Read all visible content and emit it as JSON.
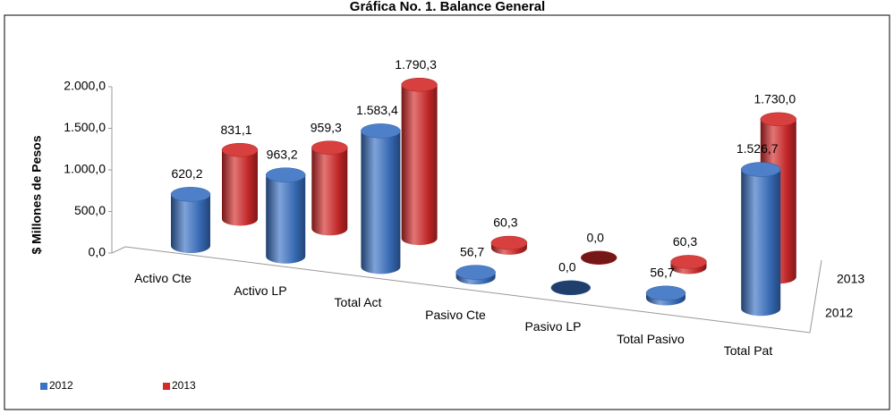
{
  "chart_data": {
    "type": "bar3d",
    "title": "Gráfica No. 1. Balance General",
    "y_label": "$ Millones de Pesos",
    "categories": [
      "Activo Cte",
      "Activo LP",
      "Total Act",
      "Pasivo Cte",
      "Pasivo LP",
      "Total Pasivo",
      "Total Pat"
    ],
    "series": [
      {
        "name": "2012",
        "color": "#3a72c4",
        "values": [
          620.2,
          963.2,
          1583.4,
          56.7,
          0.0,
          56.7,
          1526.7
        ],
        "value_labels": [
          "620,2",
          "963,2",
          "1.583,4",
          "56,7",
          "0,0",
          "56,7",
          "1.526,7"
        ]
      },
      {
        "name": "2013",
        "color": "#d42a2a",
        "values": [
          831.1,
          959.3,
          1790.3,
          60.3,
          0.0,
          60.3,
          1730.0
        ],
        "value_labels": [
          "831,1",
          "959,3",
          "1.790,3",
          "60,3",
          "0,0",
          "60,3",
          "1.730,0"
        ]
      }
    ],
    "ylim": [
      0,
      2000
    ],
    "yticks": [
      {
        "value": 0,
        "label": "0,0"
      },
      {
        "value": 500,
        "label": "500,0"
      },
      {
        "value": 1000,
        "label": "1.000,0"
      },
      {
        "value": 1500,
        "label": "1.500,0"
      },
      {
        "value": 2000,
        "label": "2.000,0"
      }
    ],
    "legend": "bottom-left"
  }
}
